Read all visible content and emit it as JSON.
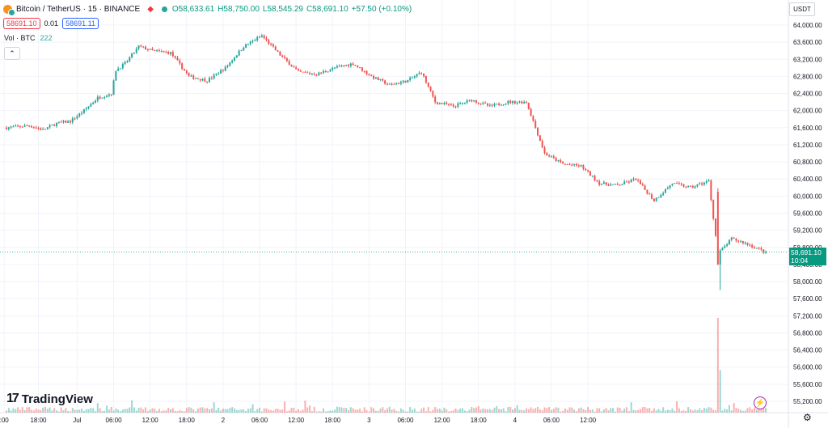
{
  "header": {
    "symbol": "Bitcoin / TetherUS · 15 · BINANCE",
    "open": "O58,633.61",
    "high": "H58,750.00",
    "low": "L58,545.29",
    "close": "C58,691.10",
    "change": "+57.50 (+0.10%)",
    "sell_price": "58691.10",
    "spread": "0.01",
    "buy_price": "58691.11",
    "vol_label": "Vol · BTC",
    "vol_value": "222",
    "collapse_glyph": "⌃"
  },
  "branding": {
    "logo_mark": "17",
    "logo_text": "TradingView"
  },
  "axis": {
    "currency": "USDT",
    "last_price_label": "58,691.10",
    "countdown": "10:04"
  },
  "icons": {
    "flash": "⚡",
    "settings": "⚙"
  },
  "colors": {
    "up": "#26a69a",
    "down": "#ef5350",
    "last_price": "#089981"
  },
  "chart_data": {
    "type": "candlestick",
    "y_axis": {
      "min": 55000,
      "max": 64200,
      "tick_labels": [
        "64,000.00",
        "63,600.00",
        "63,200.00",
        "62,800.00",
        "62,400.00",
        "62,000.00",
        "61,600.00",
        "61,200.00",
        "60,800.00",
        "60,400.00",
        "60,000.00",
        "59,600.00",
        "59,200.00",
        "58,800.00",
        "58,400.00",
        "58,000.00",
        "57,600.00",
        "57,200.00",
        "56,800.00",
        "56,400.00",
        "56,000.00",
        "55,600.00",
        "55,200.00"
      ],
      "tick_values": [
        64000,
        63600,
        63200,
        62800,
        62400,
        62000,
        61600,
        61200,
        60800,
        60400,
        60000,
        59600,
        59200,
        58800,
        58400,
        58000,
        57600,
        57200,
        56800,
        56400,
        56000,
        55600,
        55200
      ]
    },
    "x_axis": {
      "tick_labels": [
        ":00",
        "18:00",
        "Jul",
        "06:00",
        "12:00",
        "18:00",
        "2",
        "06:00",
        "12:00",
        "18:00",
        "3",
        "06:00",
        "12:00",
        "18:00",
        "4",
        "06:00",
        "12:00"
      ],
      "tick_index": [
        -1,
        14,
        31,
        47,
        63,
        79,
        95,
        111,
        127,
        143,
        159,
        175,
        191,
        207,
        223,
        239,
        255
      ]
    },
    "last_price": 58691.1,
    "close_path": [
      [
        0,
        61600
      ],
      [
        10,
        61650
      ],
      [
        16,
        61550
      ],
      [
        22,
        61700
      ],
      [
        28,
        61750
      ],
      [
        34,
        62000
      ],
      [
        40,
        62300
      ],
      [
        46,
        62400
      ],
      [
        48,
        62950
      ],
      [
        52,
        63100
      ],
      [
        58,
        63500
      ],
      [
        64,
        63400
      ],
      [
        72,
        63350
      ],
      [
        80,
        62800
      ],
      [
        88,
        62700
      ],
      [
        96,
        63000
      ],
      [
        104,
        63500
      ],
      [
        112,
        63750
      ],
      [
        120,
        63300
      ],
      [
        128,
        62900
      ],
      [
        136,
        62850
      ],
      [
        144,
        63000
      ],
      [
        152,
        63100
      ],
      [
        160,
        62800
      ],
      [
        168,
        62600
      ],
      [
        176,
        62700
      ],
      [
        182,
        62900
      ],
      [
        188,
        62200
      ],
      [
        196,
        62100
      ],
      [
        204,
        62250
      ],
      [
        212,
        62100
      ],
      [
        220,
        62200
      ],
      [
        228,
        62200
      ],
      [
        236,
        61000
      ],
      [
        244,
        60750
      ],
      [
        252,
        60700
      ],
      [
        260,
        60300
      ],
      [
        268,
        60250
      ],
      [
        276,
        60400
      ],
      [
        284,
        59900
      ],
      [
        292,
        60300
      ],
      [
        300,
        60200
      ],
      [
        308,
        60350
      ],
      [
        312,
        58650
      ],
      [
        318,
        59000
      ],
      [
        324,
        58900
      ],
      [
        330,
        58760
      ],
      [
        333,
        58690
      ]
    ],
    "candles_total": 334,
    "volume": {
      "unit": "BTC",
      "last": 222,
      "spike_index": 312,
      "spike_value": 3600,
      "typical_value": 130,
      "max_axis_value": 4000
    }
  }
}
